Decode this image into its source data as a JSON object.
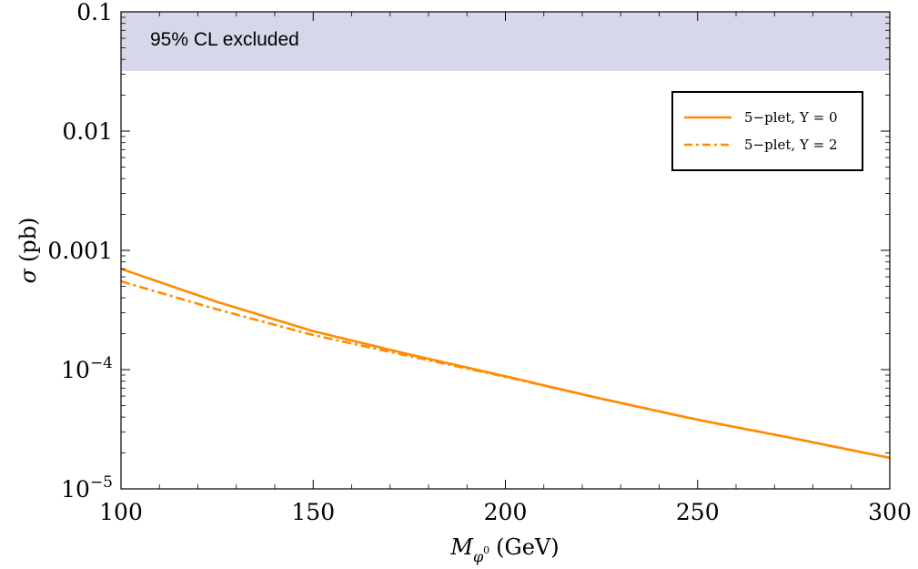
{
  "chart_data": {
    "type": "line",
    "xlabel_main": "M",
    "xlabel_sub": "φ",
    "xlabel_sup": "0",
    "xlabel_unit": "(GeV)",
    "ylabel_symbol": "σ",
    "ylabel_unit": "(pb)",
    "xlim": [
      100,
      300
    ],
    "ylim": [
      1e-05,
      0.1
    ],
    "yscale": "log",
    "x_ticks": [
      {
        "value": 100,
        "label": "100"
      },
      {
        "value": 150,
        "label": "150"
      },
      {
        "value": 200,
        "label": "200"
      },
      {
        "value": 250,
        "label": "250"
      },
      {
        "value": 300,
        "label": "300"
      }
    ],
    "y_ticks": [
      {
        "value": 1e-05,
        "base": "10",
        "exp": "−5",
        "label": ""
      },
      {
        "value": 0.0001,
        "base": "10",
        "exp": "−4",
        "label": ""
      },
      {
        "value": 0.001,
        "label": "0.001"
      },
      {
        "value": 0.01,
        "label": "0.01"
      },
      {
        "value": 0.1,
        "label": "0.1"
      }
    ],
    "excluded_band": {
      "ymin": 0.032,
      "ymax": 0.1,
      "label": "95% CL excluded",
      "color": "#d7d7ea"
    },
    "legend_position": "top-right",
    "series": [
      {
        "name": "5−plet, Y = 0",
        "style": "solid",
        "color": "#ff8c00",
        "x": [
          100,
          125,
          150,
          175,
          200,
          225,
          250,
          275,
          300
        ],
        "y": [
          0.0007,
          0.00037,
          0.00021,
          0.000134,
          8.8e-05,
          5.7e-05,
          3.8e-05,
          2.65e-05,
          1.82e-05
        ]
      },
      {
        "name": "5−plet, Y = 2",
        "style": "dashdot",
        "color": "#ff8c00",
        "x": [
          100,
          125,
          150,
          175,
          200,
          225,
          250,
          275,
          300
        ],
        "y": [
          0.00055,
          0.00032,
          0.000195,
          0.00013,
          8.7e-05,
          5.7e-05,
          3.8e-05,
          2.65e-05,
          1.82e-05
        ]
      }
    ]
  }
}
